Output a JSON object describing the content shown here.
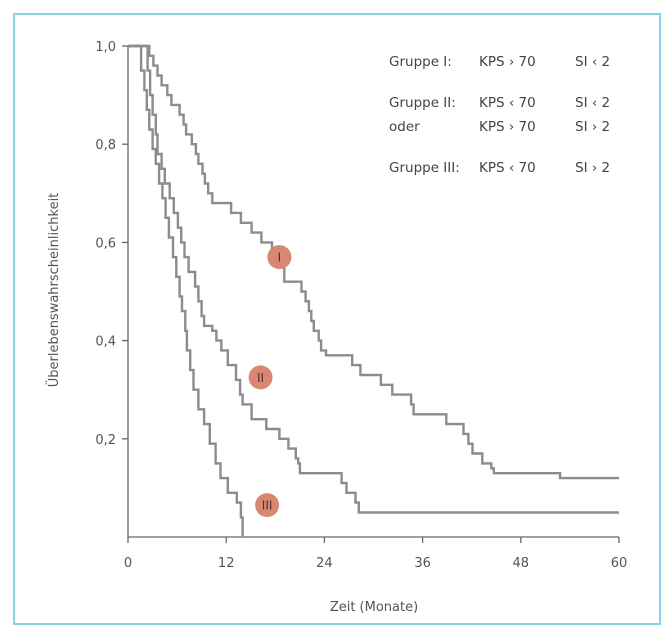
{
  "chart_data": {
    "type": "line",
    "title": "",
    "xlabel": "Zeit (Monate)",
    "ylabel": "Überlebenswahrscheinlichkeit",
    "xlim": [
      0,
      60
    ],
    "ylim": [
      0,
      1.0
    ],
    "x_ticks": [
      0,
      12,
      24,
      36,
      48,
      60
    ],
    "x_tick_labels": [
      "0",
      "12",
      "24",
      "36",
      "48",
      "60"
    ],
    "y_ticks": [
      0.2,
      0.4,
      0.6,
      0.8,
      1.0
    ],
    "y_tick_labels": [
      "0,2",
      "0,4",
      "0,6",
      "0,8",
      "1,0"
    ],
    "grid": false,
    "line_color": "#8c8c8c",
    "marker_color": "#d88872",
    "series": [
      {
        "name": "I",
        "label_x": 18.5,
        "label_y": 0.57,
        "points": [
          [
            0,
            1.0
          ],
          [
            2.6,
            1.0
          ],
          [
            2.6,
            0.98
          ],
          [
            3.1,
            0.98
          ],
          [
            3.1,
            0.96
          ],
          [
            3.6,
            0.96
          ],
          [
            3.6,
            0.94
          ],
          [
            4.1,
            0.94
          ],
          [
            4.1,
            0.92
          ],
          [
            4.8,
            0.92
          ],
          [
            4.8,
            0.9
          ],
          [
            5.3,
            0.9
          ],
          [
            5.3,
            0.88
          ],
          [
            6.3,
            0.88
          ],
          [
            6.3,
            0.86
          ],
          [
            6.8,
            0.86
          ],
          [
            6.8,
            0.84
          ],
          [
            7.1,
            0.84
          ],
          [
            7.1,
            0.82
          ],
          [
            7.8,
            0.82
          ],
          [
            7.8,
            0.8
          ],
          [
            8.3,
            0.8
          ],
          [
            8.3,
            0.78
          ],
          [
            8.6,
            0.78
          ],
          [
            8.6,
            0.76
          ],
          [
            9.1,
            0.76
          ],
          [
            9.1,
            0.74
          ],
          [
            9.4,
            0.74
          ],
          [
            9.4,
            0.72
          ],
          [
            9.8,
            0.72
          ],
          [
            9.8,
            0.7
          ],
          [
            10.3,
            0.7
          ],
          [
            10.3,
            0.68
          ],
          [
            12.6,
            0.68
          ],
          [
            12.6,
            0.66
          ],
          [
            13.8,
            0.66
          ],
          [
            13.8,
            0.64
          ],
          [
            15.1,
            0.64
          ],
          [
            15.1,
            0.62
          ],
          [
            16.3,
            0.62
          ],
          [
            16.3,
            0.6
          ],
          [
            17.6,
            0.6
          ],
          [
            17.6,
            0.57
          ],
          [
            19.1,
            0.57
          ],
          [
            19.1,
            0.52
          ],
          [
            21.2,
            0.52
          ],
          [
            21.2,
            0.5
          ],
          [
            21.7,
            0.5
          ],
          [
            21.7,
            0.48
          ],
          [
            22.1,
            0.48
          ],
          [
            22.1,
            0.46
          ],
          [
            22.4,
            0.46
          ],
          [
            22.4,
            0.44
          ],
          [
            22.7,
            0.44
          ],
          [
            22.7,
            0.42
          ],
          [
            23.3,
            0.42
          ],
          [
            23.3,
            0.4
          ],
          [
            23.6,
            0.4
          ],
          [
            23.6,
            0.38
          ],
          [
            24.2,
            0.38
          ],
          [
            24.2,
            0.37
          ],
          [
            27.4,
            0.37
          ],
          [
            27.4,
            0.35
          ],
          [
            28.4,
            0.35
          ],
          [
            28.4,
            0.33
          ],
          [
            30.9,
            0.33
          ],
          [
            30.9,
            0.31
          ],
          [
            32.3,
            0.31
          ],
          [
            32.3,
            0.29
          ],
          [
            34.6,
            0.29
          ],
          [
            34.6,
            0.27
          ],
          [
            34.9,
            0.27
          ],
          [
            34.9,
            0.25
          ],
          [
            38.9,
            0.25
          ],
          [
            38.9,
            0.23
          ],
          [
            41.0,
            0.23
          ],
          [
            41.0,
            0.21
          ],
          [
            41.6,
            0.21
          ],
          [
            41.6,
            0.19
          ],
          [
            42.1,
            0.19
          ],
          [
            42.1,
            0.17
          ],
          [
            43.3,
            0.17
          ],
          [
            43.3,
            0.15
          ],
          [
            44.4,
            0.15
          ],
          [
            44.4,
            0.14
          ],
          [
            44.7,
            0.14
          ],
          [
            44.7,
            0.13
          ],
          [
            52.8,
            0.13
          ],
          [
            52.8,
            0.12
          ],
          [
            60.0,
            0.12
          ]
        ]
      },
      {
        "name": "II",
        "label_x": 16.2,
        "label_y": 0.325,
        "points": [
          [
            0,
            1.0
          ],
          [
            2.4,
            1.0
          ],
          [
            2.4,
            0.95
          ],
          [
            2.7,
            0.95
          ],
          [
            2.7,
            0.9
          ],
          [
            3.0,
            0.9
          ],
          [
            3.0,
            0.86
          ],
          [
            3.4,
            0.86
          ],
          [
            3.4,
            0.82
          ],
          [
            3.6,
            0.82
          ],
          [
            3.6,
            0.78
          ],
          [
            4.1,
            0.78
          ],
          [
            4.1,
            0.75
          ],
          [
            4.5,
            0.75
          ],
          [
            4.5,
            0.72
          ],
          [
            5.1,
            0.72
          ],
          [
            5.1,
            0.69
          ],
          [
            5.6,
            0.69
          ],
          [
            5.6,
            0.66
          ],
          [
            6.1,
            0.66
          ],
          [
            6.1,
            0.63
          ],
          [
            6.5,
            0.63
          ],
          [
            6.5,
            0.6
          ],
          [
            6.9,
            0.6
          ],
          [
            6.9,
            0.57
          ],
          [
            7.4,
            0.57
          ],
          [
            7.4,
            0.54
          ],
          [
            8.2,
            0.54
          ],
          [
            8.2,
            0.51
          ],
          [
            8.6,
            0.51
          ],
          [
            8.6,
            0.48
          ],
          [
            9.0,
            0.48
          ],
          [
            9.0,
            0.45
          ],
          [
            9.3,
            0.45
          ],
          [
            9.3,
            0.43
          ],
          [
            10.3,
            0.43
          ],
          [
            10.3,
            0.42
          ],
          [
            10.8,
            0.42
          ],
          [
            10.8,
            0.4
          ],
          [
            11.4,
            0.4
          ],
          [
            11.4,
            0.38
          ],
          [
            12.2,
            0.38
          ],
          [
            12.2,
            0.35
          ],
          [
            13.2,
            0.35
          ],
          [
            13.2,
            0.32
          ],
          [
            13.7,
            0.32
          ],
          [
            13.7,
            0.29
          ],
          [
            14.0,
            0.29
          ],
          [
            14.0,
            0.27
          ],
          [
            15.1,
            0.27
          ],
          [
            15.1,
            0.24
          ],
          [
            16.9,
            0.24
          ],
          [
            16.9,
            0.22
          ],
          [
            18.5,
            0.22
          ],
          [
            18.5,
            0.2
          ],
          [
            19.6,
            0.2
          ],
          [
            19.6,
            0.18
          ],
          [
            20.5,
            0.18
          ],
          [
            20.5,
            0.16
          ],
          [
            20.8,
            0.16
          ],
          [
            20.8,
            0.15
          ],
          [
            21.0,
            0.15
          ],
          [
            21.0,
            0.13
          ],
          [
            26.1,
            0.13
          ],
          [
            26.1,
            0.11
          ],
          [
            26.7,
            0.11
          ],
          [
            26.7,
            0.09
          ],
          [
            27.8,
            0.09
          ],
          [
            27.8,
            0.07
          ],
          [
            28.2,
            0.07
          ],
          [
            28.2,
            0.05
          ],
          [
            60.0,
            0.05
          ]
        ]
      },
      {
        "name": "III",
        "label_x": 17.0,
        "label_y": 0.065,
        "points": [
          [
            0,
            1.0
          ],
          [
            1.6,
            1.0
          ],
          [
            1.6,
            0.95
          ],
          [
            2.0,
            0.95
          ],
          [
            2.0,
            0.91
          ],
          [
            2.3,
            0.91
          ],
          [
            2.3,
            0.87
          ],
          [
            2.6,
            0.87
          ],
          [
            2.6,
            0.83
          ],
          [
            3.0,
            0.83
          ],
          [
            3.0,
            0.79
          ],
          [
            3.4,
            0.79
          ],
          [
            3.4,
            0.76
          ],
          [
            3.8,
            0.76
          ],
          [
            3.8,
            0.72
          ],
          [
            4.2,
            0.72
          ],
          [
            4.2,
            0.69
          ],
          [
            4.6,
            0.69
          ],
          [
            4.6,
            0.65
          ],
          [
            5.0,
            0.65
          ],
          [
            5.0,
            0.61
          ],
          [
            5.5,
            0.61
          ],
          [
            5.5,
            0.57
          ],
          [
            5.9,
            0.57
          ],
          [
            5.9,
            0.53
          ],
          [
            6.3,
            0.53
          ],
          [
            6.3,
            0.49
          ],
          [
            6.6,
            0.49
          ],
          [
            6.6,
            0.46
          ],
          [
            7.0,
            0.46
          ],
          [
            7.0,
            0.42
          ],
          [
            7.2,
            0.42
          ],
          [
            7.2,
            0.38
          ],
          [
            7.6,
            0.38
          ],
          [
            7.6,
            0.34
          ],
          [
            8.0,
            0.34
          ],
          [
            8.0,
            0.3
          ],
          [
            8.6,
            0.3
          ],
          [
            8.6,
            0.26
          ],
          [
            9.3,
            0.26
          ],
          [
            9.3,
            0.23
          ],
          [
            10.0,
            0.23
          ],
          [
            10.0,
            0.19
          ],
          [
            10.7,
            0.19
          ],
          [
            10.7,
            0.15
          ],
          [
            11.3,
            0.15
          ],
          [
            11.3,
            0.12
          ],
          [
            12.2,
            0.12
          ],
          [
            12.2,
            0.09
          ],
          [
            13.3,
            0.09
          ],
          [
            13.3,
            0.07
          ],
          [
            13.8,
            0.07
          ],
          [
            13.8,
            0.04
          ],
          [
            14.0,
            0.04
          ],
          [
            14.0,
            0.0
          ]
        ]
      }
    ],
    "legend": {
      "placement": "top-right",
      "rows": [
        {
          "group": "Gruppe I:",
          "kps": "KPS › 70",
          "si": "SI ‹ 2"
        },
        {
          "group": "Gruppe II:",
          "kps": "KPS ‹ 70",
          "si": "SI ‹ 2"
        },
        {
          "group": "oder",
          "kps": "KPS › 70",
          "si": "SI › 2"
        },
        {
          "group": "Gruppe III:",
          "kps": "KPS ‹ 70",
          "si": "SI › 2"
        }
      ]
    }
  }
}
